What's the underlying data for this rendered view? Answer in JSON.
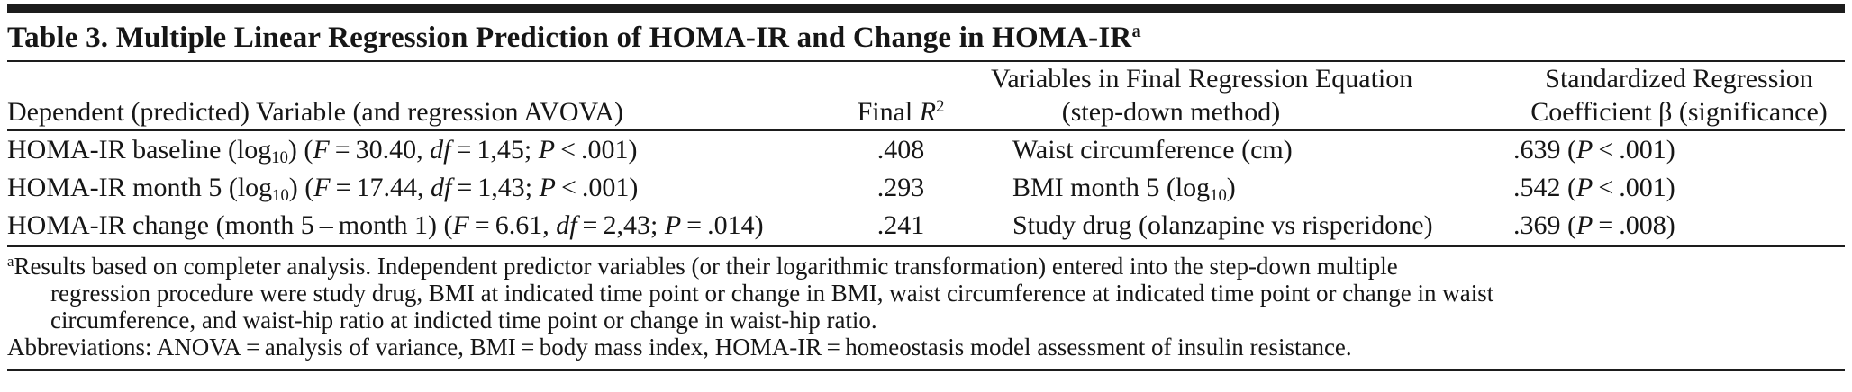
{
  "colors": {
    "text": "#161616",
    "rule": "#1d1d1d",
    "background": "#ffffff"
  },
  "table": {
    "title": [
      {
        "t": "Table 3. Multiple Linear Regression Prediction of HOMA-IR and Change in HOMA-IR"
      },
      {
        "t": "a",
        "sup": true
      }
    ],
    "header": [
      [
        {
          "t": "Dependent (predicted) Variable (and regression AVOVA)"
        }
      ],
      [
        {
          "t": "Final "
        },
        {
          "t": "R",
          "i": true
        },
        {
          "t": "2",
          "sup": true
        }
      ],
      [
        {
          "t": "Variables in Final Regression Equation"
        },
        {
          "br": true
        },
        {
          "t": "(step-down method)"
        }
      ],
      [
        {
          "t": "Standardized Regression"
        },
        {
          "br": true
        },
        {
          "t": "Coefficient β (significance)"
        }
      ]
    ],
    "rows": [
      {
        "cells": [
          [
            {
              "t": "HOMA-IR baseline (log"
            },
            {
              "t": "10",
              "sub": true
            },
            {
              "t": ") ("
            },
            {
              "t": "F",
              "i": true
            },
            {
              "t": " = 30.40, "
            },
            {
              "t": "df",
              "i": true
            },
            {
              "t": " = 1,45; "
            },
            {
              "t": "P",
              "i": true
            },
            {
              "t": " < .001)"
            }
          ],
          [
            {
              "t": ".408"
            }
          ],
          [
            {
              "t": "Waist circumference (cm)"
            }
          ],
          [
            {
              "t": ".639 ("
            },
            {
              "t": "P",
              "i": true
            },
            {
              "t": " < .001)"
            }
          ]
        ]
      },
      {
        "cells": [
          [
            {
              "t": "HOMA-IR month 5 (log"
            },
            {
              "t": "10",
              "sub": true
            },
            {
              "t": ") ("
            },
            {
              "t": "F",
              "i": true
            },
            {
              "t": " = 17.44, "
            },
            {
              "t": "df",
              "i": true
            },
            {
              "t": " = 1,43; "
            },
            {
              "t": "P",
              "i": true
            },
            {
              "t": " < .001)"
            }
          ],
          [
            {
              "t": ".293"
            }
          ],
          [
            {
              "t": "BMI month 5 (log"
            },
            {
              "t": "10",
              "sub": true
            },
            {
              "t": ")"
            }
          ],
          [
            {
              "t": ".542 ("
            },
            {
              "t": "P",
              "i": true
            },
            {
              "t": " < .001)"
            }
          ]
        ]
      },
      {
        "cells": [
          [
            {
              "t": "HOMA-IR change (month 5 – month 1) ("
            },
            {
              "t": "F",
              "i": true
            },
            {
              "t": " = 6.61, "
            },
            {
              "t": "df",
              "i": true
            },
            {
              "t": " = 2,43; "
            },
            {
              "t": "P",
              "i": true
            },
            {
              "t": " = .014)"
            }
          ],
          [
            {
              "t": ".241"
            }
          ],
          [
            {
              "t": "Study drug (olanzapine vs risperidone)"
            }
          ],
          [
            {
              "t": ".369 ("
            },
            {
              "t": "P",
              "i": true
            },
            {
              "t": " = .008)"
            }
          ]
        ]
      }
    ],
    "footnotes": [
      [
        {
          "t": "a",
          "sup": true
        },
        {
          "t": "Results based on completer analysis. Independent predictor variables (or their logarithmic transformation) entered into the step-down multiple"
        },
        {
          "br": true
        },
        {
          "t": "regression procedure were study drug, BMI at indicated time point or change in BMI, waist circumference at indicated time point or change in waist"
        },
        {
          "br": true
        },
        {
          "t": "circumference, and waist-hip ratio at indicted time point or change in waist-hip ratio."
        }
      ],
      [
        {
          "t": "Abbreviations: ANOVA = analysis of variance, BMI = body mass index, HOMA-IR = homeostasis model assessment of insulin resistance."
        }
      ]
    ]
  }
}
